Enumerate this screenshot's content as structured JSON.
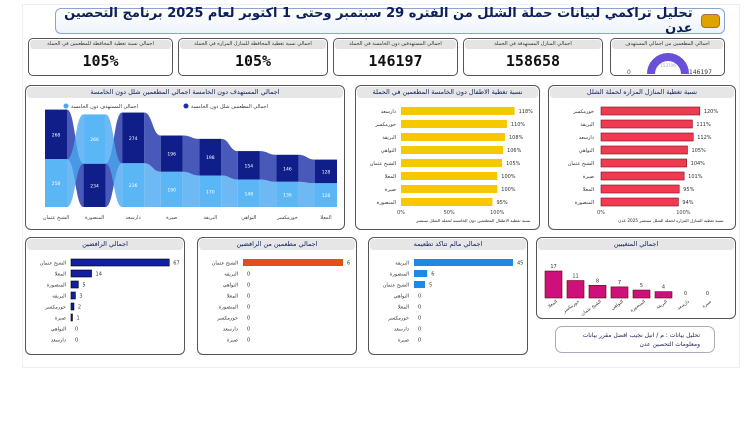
{
  "header": {
    "title": "تحليل تراكمي لبيانات حملة الشلل من الفتره 29 سبتمبر وحتى 1 اكتوبر لعام 2025 برنامج التحصين عدن"
  },
  "kpis": [
    {
      "label": "اجمالي نسبة تغطية المحافظة للمطعمين في الحملة",
      "value": "105%"
    },
    {
      "label": "اجمالي نسبة تغطية المحافظة للمنازل المزاره في الحملة",
      "value": "105%"
    },
    {
      "label": "اجمالي المستهدفين دون الخامسة في الحملة",
      "value": "146197"
    },
    {
      "label": "اجمالي المنازل المستهدفة في الحملة",
      "value": "158658"
    }
  ],
  "gauge": {
    "label": "اجمالي المطعمين من اجمالي المستهدف",
    "min": "0",
    "value": "153706",
    "max": "146197",
    "fraction": 1.0,
    "color": "#6a4fd8"
  },
  "chart_data": [
    {
      "id": "ribbon",
      "type": "area",
      "title": "اجمالي المستهدف دون الخامسة اجمالي المطعمين شلل دون الخامسة",
      "legend": [
        "اجمالي المطعمين شلل دون الخامسة",
        "اجمالي المستهدف دون الخامسة"
      ],
      "categories": [
        "الشيخ عثمان",
        "المنصورة",
        "دارسعد",
        "صيرة",
        "البريقة",
        "التواهي",
        "خورمكسر",
        "المعلا"
      ],
      "series": [
        {
          "name": "اجمالي المطعمين شلل دون الخامسة",
          "color": "#1a2fa8",
          "values": [
            268,
            234,
            274,
            196,
            198,
            154,
            146,
            128
          ]
        },
        {
          "name": "اجمالي المستهدف دون الخامسة",
          "color": "#4aa8f0",
          "values": [
            258,
            266,
            236,
            190,
            170,
            148,
            136,
            128
          ]
        }
      ],
      "top_series": [
        0,
        1,
        0,
        0,
        0,
        0,
        0,
        0
      ]
    },
    {
      "id": "yellow",
      "type": "bar",
      "title": "نسبة تغطية الاطفال دون الخامسة المطعمين في الحملة",
      "color": "#f5c800",
      "categories": [
        "دارسعد",
        "خورمكسر",
        "البريقة",
        "التواهي",
        "الشيخ عثمان",
        "المعلا",
        "صيرة",
        "المنصورة"
      ],
      "values": [
        118,
        110,
        108,
        106,
        105,
        100,
        100,
        95
      ],
      "labels": [
        "118%",
        "110%",
        "108%",
        "106%",
        "105%",
        "100%",
        "100%",
        "95%"
      ],
      "ticks": [
        "0%",
        "50%",
        "100%"
      ],
      "xlim": [
        0,
        150
      ],
      "xlabel": "نسبة تغطية الاطفال المطعمين دون الخامسة لحملة الشلل سبتمبر"
    },
    {
      "id": "red",
      "type": "bar",
      "title": "نسبة تغطية المنازل المزاره لحملة الشلل",
      "color": "#f03a52",
      "categories": [
        "خورمكسر",
        "البريقة",
        "دارسعد",
        "التواهي",
        "الشيخ عثمان",
        "صيرة",
        "المعلا",
        "المنصورة"
      ],
      "values": [
        120,
        111,
        112,
        105,
        104,
        101,
        95,
        94
      ],
      "labels": [
        "120%",
        "111%",
        "112%",
        "105%",
        "104%",
        "101%",
        "95%",
        "94%"
      ],
      "ticks": [
        "0%",
        "100%"
      ],
      "xlim": [
        0,
        170
      ],
      "xlabel": "نسبة تغطية المنازل المزاره لحملة الشلل سبتمبر 2025 عدن"
    },
    {
      "id": "refusers",
      "type": "bar",
      "title": "اجمالي الرافضين",
      "color": "#1020a0",
      "categories": [
        "الشيخ عثمان",
        "المعلا",
        "المنصورة",
        "البريقة",
        "خورمكسر",
        "صيرة",
        "التواهي",
        "دارسعد"
      ],
      "values": [
        67,
        14,
        5,
        3,
        2,
        1,
        0,
        0
      ],
      "xlim": [
        0,
        75
      ]
    },
    {
      "id": "vacc_refusers",
      "type": "bar",
      "title": "اجمالي مطعمين من الرافضين",
      "color": "#e0501a",
      "categories": [
        "الشيخ عثمان",
        "البريقة",
        "التواهي",
        "المعلا",
        "المنصورة",
        "خورمكسر",
        "دارسعد",
        "صيرة"
      ],
      "values": [
        6,
        0,
        0,
        0,
        0,
        0,
        0,
        0
      ],
      "xlim": [
        0,
        6.6
      ]
    },
    {
      "id": "unsure",
      "type": "bar",
      "title": "اجمالي مالم تتاكد تطعيمه",
      "color": "#1e88e5",
      "categories": [
        "البريقة",
        "المنصورة",
        "الشيخ عثمان",
        "التواهي",
        "المعلا",
        "خورمكسر",
        "دارسعد",
        "صيرة"
      ],
      "values": [
        45,
        6,
        5,
        0,
        0,
        0,
        0,
        0
      ],
      "xlim": [
        0,
        50
      ]
    },
    {
      "id": "absent",
      "type": "bar",
      "title": "اجمالي المتغيبين",
      "color": "#d0107a",
      "categories": [
        "المعلا",
        "خورمكسر",
        "الشيخ عثمان",
        "التواهي",
        "المنصورة",
        "البريقة",
        "دارسعد",
        "صيرة"
      ],
      "values": [
        17,
        11,
        8,
        7,
        5,
        4,
        0,
        0
      ],
      "ylim": [
        0,
        17
      ]
    }
  ],
  "note": {
    "text": "تحليل بيانات : م / انيل نجيب افضل مقرر بيانات ومعلومات التحصين عدن"
  }
}
